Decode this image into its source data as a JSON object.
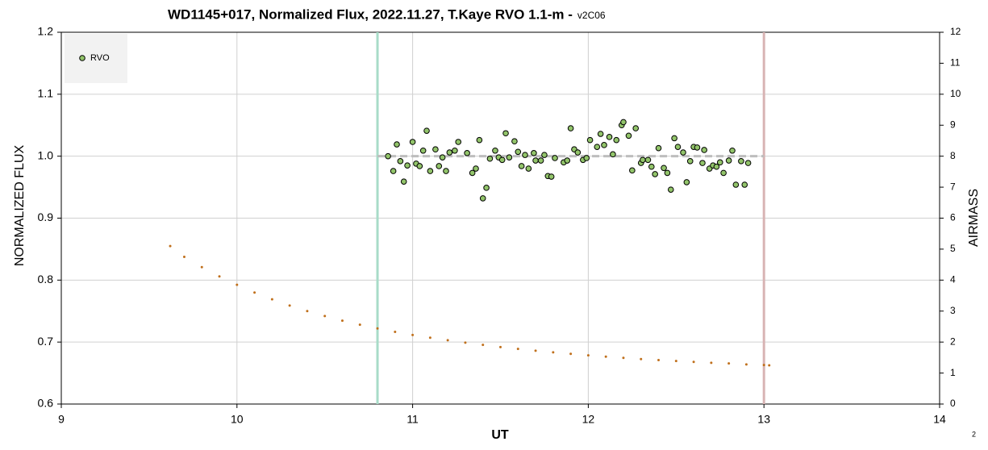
{
  "chart_data": {
    "type": "scatter",
    "title": "WD1145+017, Normalized Flux, 2022.11.27, T.Kaye RVO 1.1-m -",
    "subtitle": "v2C06",
    "xlabel": "UT",
    "ylabel": "NORMALIZED FLUX",
    "y2label": "AIRMASS",
    "annotation": "2",
    "xlim": [
      9,
      14
    ],
    "xticks": [
      9,
      10,
      11,
      12,
      13,
      14
    ],
    "ylim": [
      0.6,
      1.2
    ],
    "yticks": [
      0.6,
      0.7,
      0.8,
      0.9,
      {
        "value": 1,
        "label": "1.0"
      },
      1.1,
      1.2
    ],
    "y2lim": [
      0,
      12
    ],
    "y2ticks": [
      0,
      1,
      2,
      3,
      4,
      5,
      6,
      7,
      8,
      9,
      10,
      11,
      12
    ],
    "grid": true,
    "legend": "upper left",
    "series": [
      {
        "name": "RVO",
        "color": "#92c46a",
        "x": [
          10.86,
          10.89,
          10.91,
          10.93,
          10.95,
          10.97,
          11.0,
          11.02,
          11.04,
          11.06,
          11.08,
          11.1,
          11.13,
          11.15,
          11.17,
          11.19,
          11.21,
          11.24,
          11.26,
          11.31,
          11.34,
          11.36,
          11.38,
          11.4,
          11.42,
          11.44,
          11.47,
          11.49,
          11.51,
          11.53,
          11.55,
          11.58,
          11.6,
          11.62,
          11.64,
          11.66,
          11.69,
          11.7,
          11.73,
          11.75,
          11.77,
          11.79,
          11.81,
          11.86,
          11.88,
          11.9,
          11.92,
          11.94,
          11.97,
          11.99,
          12.01,
          12.05,
          12.07,
          12.09,
          12.12,
          12.14,
          12.16,
          12.19,
          12.2,
          12.23,
          12.25,
          12.27,
          12.3,
          12.31,
          12.34,
          12.36,
          12.38,
          12.4,
          12.43,
          12.45,
          12.47,
          12.49,
          12.51,
          12.54,
          12.56,
          12.58,
          12.6,
          12.62,
          12.65,
          12.66,
          12.69,
          12.71,
          12.73,
          12.75,
          12.77,
          12.8,
          12.82,
          12.84,
          12.87,
          12.89,
          12.91
        ],
        "values": [
          1.0,
          0.976,
          1.019,
          0.992,
          0.959,
          0.985,
          1.023,
          0.988,
          0.984,
          1.009,
          1.041,
          0.976,
          1.011,
          0.984,
          0.998,
          0.976,
          1.006,
          1.009,
          1.023,
          1.005,
          0.973,
          0.98,
          1.026,
          0.932,
          0.949,
          0.996,
          1.009,
          0.998,
          0.994,
          1.037,
          0.998,
          1.024,
          1.007,
          0.984,
          1.002,
          0.98,
          1.005,
          0.993,
          0.993,
          1.002,
          0.968,
          0.967,
          0.997,
          0.99,
          0.993,
          1.045,
          1.011,
          1.006,
          0.994,
          0.997,
          1.026,
          1.015,
          1.036,
          1.018,
          1.031,
          1.003,
          1.026,
          1.05,
          1.055,
          1.033,
          0.977,
          1.045,
          0.989,
          0.994,
          0.994,
          0.983,
          0.971,
          1.013,
          0.981,
          0.973,
          0.946,
          1.029,
          1.015,
          1.006,
          0.958,
          0.992,
          1.015,
          1.014,
          0.989,
          1.01,
          0.98,
          0.985,
          0.983,
          0.99,
          0.973,
          0.993,
          1.009,
          0.954,
          0.992,
          0.954,
          0.989
        ]
      },
      {
        "axis": "y2",
        "color": "#c0701c",
        "x": [
          9.62,
          9.7,
          9.8,
          9.9,
          10.0,
          10.1,
          10.2,
          10.3,
          10.4,
          10.5,
          10.6,
          10.7,
          10.8,
          10.9,
          11.0,
          11.1,
          11.2,
          11.3,
          11.4,
          11.5,
          11.6,
          11.7,
          11.8,
          11.9,
          12.0,
          12.1,
          12.2,
          12.3,
          12.4,
          12.5,
          12.6,
          12.7,
          12.8,
          12.9,
          13.0,
          13.03
        ],
        "values": [
          5.1,
          4.75,
          4.42,
          4.12,
          3.85,
          3.6,
          3.38,
          3.18,
          3.0,
          2.84,
          2.69,
          2.56,
          2.44,
          2.33,
          2.23,
          2.14,
          2.06,
          1.98,
          1.91,
          1.84,
          1.78,
          1.72,
          1.67,
          1.62,
          1.57,
          1.53,
          1.49,
          1.45,
          1.42,
          1.39,
          1.36,
          1.33,
          1.31,
          1.28,
          1.26,
          1.25
        ]
      }
    ],
    "vlines": [
      {
        "value": 10.8,
        "color": "#a8dcc8"
      },
      {
        "value": 13.0,
        "color": "#d8b4b4"
      }
    ],
    "hline": {
      "y": 1,
      "x": [
        10.8,
        13.0
      ],
      "color": "#bdbdbd"
    }
  }
}
